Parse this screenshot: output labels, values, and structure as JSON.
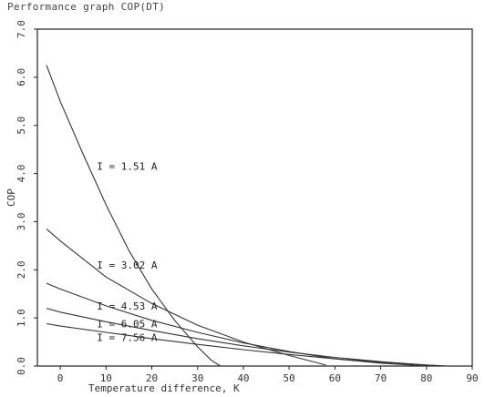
{
  "chart_data": {
    "type": "line",
    "title": "Performance graph COP(DT)",
    "xlabel": "Temperature difference, K",
    "ylabel": "COP",
    "xlim": [
      -5,
      90
    ],
    "ylim": [
      0,
      7
    ],
    "x_ticks": [
      "0",
      "10",
      "20",
      "30",
      "40",
      "50",
      "60",
      "70",
      "80",
      "90"
    ],
    "y_ticks": [
      "0.0",
      "1.0",
      "2.0",
      "3.0",
      "4.0",
      "5.0",
      "6.0",
      "7.0"
    ],
    "grid": false,
    "series": [
      {
        "name": "I = 1.51 A",
        "x": [
          -3,
          0,
          5,
          10,
          15,
          20,
          25,
          30,
          33,
          35
        ],
        "y": [
          6.25,
          5.5,
          4.4,
          3.35,
          2.4,
          1.6,
          0.95,
          0.4,
          0.12,
          0.0
        ]
      },
      {
        "name": "I = 3.02 A",
        "x": [
          -3,
          0,
          10,
          20,
          30,
          40,
          50,
          58
        ],
        "y": [
          2.85,
          2.6,
          1.85,
          1.3,
          0.85,
          0.5,
          0.22,
          0.02
        ]
      },
      {
        "name": "I = 4.53 A",
        "x": [
          -3,
          0,
          10,
          20,
          30,
          40,
          50,
          60,
          70,
          80
        ],
        "y": [
          1.72,
          1.6,
          1.25,
          0.95,
          0.7,
          0.48,
          0.3,
          0.15,
          0.06,
          0.0
        ]
      },
      {
        "name": "I = 6.05 A",
        "x": [
          -3,
          0,
          10,
          20,
          30,
          40,
          50,
          60,
          70,
          80,
          84
        ],
        "y": [
          1.2,
          1.12,
          0.92,
          0.74,
          0.57,
          0.42,
          0.29,
          0.18,
          0.09,
          0.02,
          0.0
        ]
      },
      {
        "name": "I = 7.56 A",
        "x": [
          -3,
          0,
          10,
          20,
          30,
          40,
          50,
          60,
          70,
          80,
          85
        ],
        "y": [
          0.88,
          0.83,
          0.7,
          0.57,
          0.45,
          0.34,
          0.24,
          0.15,
          0.08,
          0.02,
          0.0
        ]
      }
    ],
    "series_labels": [
      {
        "text": "I = 1.51 A",
        "x": 8,
        "y": 4.15
      },
      {
        "text": "I = 3.02 A",
        "x": 8,
        "y": 2.1
      },
      {
        "text": "I = 4.53 A",
        "x": 8,
        "y": 1.25
      },
      {
        "text": "I = 6.05 A",
        "x": 8,
        "y": 0.88
      },
      {
        "text": "I = 7.56 A",
        "x": 8,
        "y": 0.6
      }
    ]
  }
}
